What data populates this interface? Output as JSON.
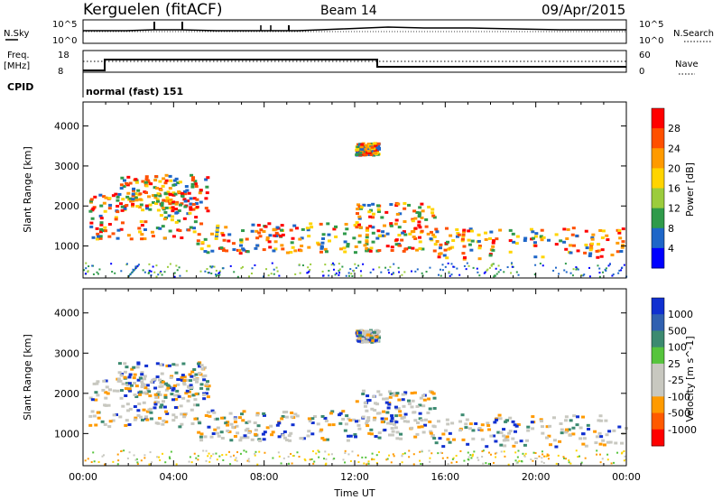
{
  "header": {
    "station": "Kerguelen (fitACF)",
    "beam": "Beam 14",
    "date": "09/Apr/2015"
  },
  "top_panels": {
    "nsky": {
      "label": "N.Sky",
      "tick_top": "10^5",
      "tick_bottom": "10^0",
      "right_label": "N.Search",
      "right_tick_top": "10^5",
      "right_tick_bottom": "10^0"
    },
    "freq": {
      "label_line1": "Freq.",
      "label_line2": "[MHz]",
      "tick_top": "18",
      "tick_bottom": "8",
      "right_label": "Nave",
      "right_tick_top": "60",
      "right_tick_bottom": "0"
    },
    "cpid": {
      "label": "CPID",
      "text": "normal (fast) 151"
    }
  },
  "chart_data": [
    {
      "type": "heatmap",
      "name": "power",
      "ylabel": "Slant Range [km]",
      "ylim": [
        200,
        4600
      ],
      "yticks": [
        1000,
        2000,
        3000,
        4000
      ],
      "xlim": [
        0,
        24
      ],
      "colorbar": {
        "label": "Power [dB]",
        "ticks": [
          "28",
          "24",
          "20",
          "16",
          "12",
          "8",
          "4"
        ],
        "colors": [
          "#ff0000",
          "#ff5000",
          "#ff9a00",
          "#ffd400",
          "#9bcc3c",
          "#2f9a4a",
          "#1e66c8",
          "#0000ff"
        ]
      }
    },
    {
      "type": "heatmap",
      "name": "velocity",
      "ylabel": "Slant Range [km]",
      "ylim": [
        200,
        4600
      ],
      "yticks": [
        1000,
        2000,
        3000,
        4000
      ],
      "xlim": [
        0,
        24
      ],
      "xlabel": "Time UT",
      "xticks": [
        "00:00",
        "04:00",
        "08:00",
        "12:00",
        "16:00",
        "20:00",
        "00:00"
      ],
      "colorbar": {
        "label": "Velocity [m s^-1]",
        "ticks": [
          "1000",
          "500",
          "100",
          "25",
          "-25",
          "-100",
          "-500",
          "-1000"
        ],
        "colors": [
          "#1030d0",
          "#3060b0",
          "#3c8a70",
          "#56c43c",
          "#c8c8c0",
          "#c8c8c0",
          "#ff9a00",
          "#ff5a00",
          "#ff0000"
        ]
      }
    }
  ]
}
